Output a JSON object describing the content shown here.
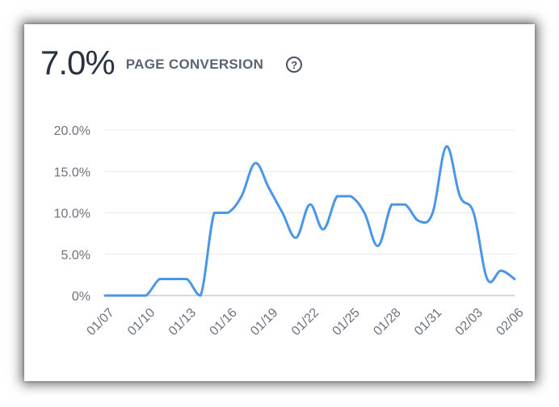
{
  "header": {
    "kpi_value": "7.0%",
    "kpi_label": "PAGE CONVERSION",
    "help_glyph": "?"
  },
  "colors": {
    "line": "#4a96e8",
    "grid": "#e6e8eb",
    "text": "#6b7380"
  },
  "icons": {
    "help": "question-circle-icon"
  },
  "chart_data": {
    "type": "line",
    "title": "",
    "xlabel": "",
    "ylabel": "",
    "ylim": [
      0,
      20
    ],
    "grid": true,
    "yticks": [
      "0%",
      "5.0%",
      "10.0%",
      "15.0%",
      "20.0%"
    ],
    "ytick_values": [
      0,
      5,
      10,
      15,
      20
    ],
    "x": [
      "01/07",
      "01/08",
      "01/09",
      "01/10",
      "01/11",
      "01/12",
      "01/13",
      "01/14",
      "01/15",
      "01/16",
      "01/17",
      "01/18",
      "01/19",
      "01/20",
      "01/21",
      "01/22",
      "01/23",
      "01/24",
      "01/25",
      "01/26",
      "01/27",
      "01/28",
      "01/29",
      "01/30",
      "01/31",
      "02/01",
      "02/02",
      "02/03",
      "02/04",
      "02/05",
      "02/06"
    ],
    "xtick_labels": [
      "01/07",
      "01/10",
      "01/13",
      "01/16",
      "01/19",
      "01/22",
      "01/25",
      "01/28",
      "01/31",
      "02/03",
      "02/06"
    ],
    "series": [
      {
        "values": [
          0,
          0,
          0,
          0,
          2,
          2,
          2,
          0,
          10,
          10,
          12,
          16,
          13,
          10,
          7,
          11,
          8,
          12,
          12,
          10,
          6,
          11,
          11,
          9,
          10,
          18,
          12,
          10,
          2,
          3,
          2
        ]
      }
    ]
  }
}
